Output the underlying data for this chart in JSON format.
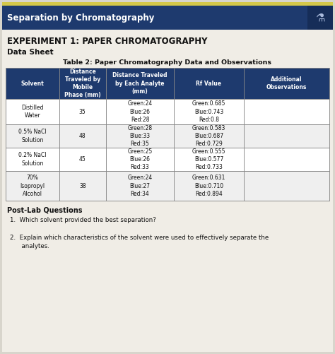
{
  "page_title": "Separation by Chromatography",
  "header_bg": "#1e3a6e",
  "header_text_color": "#ffffff",
  "experiment_title": "EXPERIMENT 1: PAPER CHROMATOGRAPHY",
  "section_title": "Data Sheet",
  "table_title": "Table 2: Paper Chromatography Data and Observations",
  "col_headers": [
    "Solvent",
    "Distance\nTraveled by\nMobile\nPhase (mm)",
    "Distance Traveled\nby Each Analyte\n(mm)",
    "Rf Value",
    "Additional\nObservations"
  ],
  "col_header_bg": "#1e3a6e",
  "col_header_text": "#ffffff",
  "row_bg_white": "#ffffff",
  "row_bg_gray": "#efefef",
  "table_border": "#888888",
  "rows": [
    {
      "solvent": "Distilled\nWater",
      "mobile_dist": "35",
      "analyte_dist": "Green:24\nBlue:26\nRed:28",
      "rf_value": "Green:0.685\nBlue:0.743\nRed:0.8",
      "observations": ""
    },
    {
      "solvent": "0.5% NaCl\nSolution",
      "mobile_dist": "48",
      "analyte_dist": "Green:28\nBlue:33\nRed:35",
      "rf_value": "Green:0.583\nBlue:0.687\nRed:0.729",
      "observations": ""
    },
    {
      "solvent": "0.2% NaCl\nSolution",
      "mobile_dist": "45",
      "analyte_dist": "Green:25\nBlue:26\nRed:33",
      "rf_value": "Green:0.555\nBlue:0.577\nRed:0.733",
      "observations": ""
    },
    {
      "solvent": "70%\nIsopropyl\nAlcohol",
      "mobile_dist": "38",
      "analyte_dist": "Green:24\nBlue:27\nRed:34",
      "rf_value": "Green:0.631\nBlue:0.710\nRed:0.894",
      "observations": ""
    }
  ],
  "postlab_title": "Post-Lab Questions",
  "question1": "1.  Which solvent provided the best separation?",
  "question2": "2.  Explain which characteristics of the solvent were used to effectively separate the\n      analytes.",
  "bg_color": "#d8d5cc",
  "content_bg": "#f0ede6",
  "top_accent": "#d4c84a"
}
